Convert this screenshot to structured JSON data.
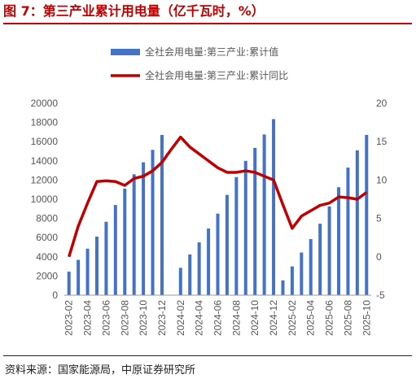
{
  "figure_title": "图 7：第三产业累计用电量（亿千瓦时，%）",
  "source_text": "资料来源：国家能源局，中原证券研究所",
  "colors": {
    "bar": "#4472c4",
    "line": "#c00000",
    "title": "#c00000"
  },
  "chart_data": {
    "type": "bar",
    "categories": [
      "2023-02",
      "2023-03",
      "2023-04",
      "2023-05",
      "2023-06",
      "2023-07",
      "2023-08",
      "2023-09",
      "2023-10",
      "2023-11",
      "2023-12",
      "2024-01",
      "2024-02",
      "2024-03",
      "2024-04",
      "2024-05",
      "2024-06",
      "2024-07",
      "2024-08",
      "2024-09",
      "2024-10",
      "2024-11",
      "2024-12",
      "2025-01",
      "2025-02",
      "2025-03",
      "2025-04",
      "2025-05",
      "2025-06",
      "2025-07",
      "2025-08",
      "2025-09",
      "2025-10"
    ],
    "x_tick_labels": [
      "2023-02",
      "2023-04",
      "2023-06",
      "2023-08",
      "2023-10",
      "2023-12",
      "2024-02",
      "2024-04",
      "2024-06",
      "2024-08",
      "2024-10",
      "2024-12",
      "2025-02",
      "2025-04",
      "2025-06",
      "2025-08",
      "2025-10"
    ],
    "series": [
      {
        "name": "全社会用电量:第三产业:累计值",
        "type": "bar",
        "axis": "left",
        "values": [
          2450,
          3680,
          4850,
          6100,
          7650,
          9400,
          11100,
          12600,
          13850,
          15150,
          16700,
          null,
          2850,
          4250,
          5500,
          6950,
          8500,
          10450,
          12300,
          14000,
          15350,
          16750,
          18350,
          1550,
          3000,
          4450,
          5850,
          7450,
          9250,
          11250,
          13300,
          15100,
          16700
        ]
      },
      {
        "name": "全社会用电量:第三产业:累计同比",
        "type": "line",
        "axis": "right",
        "values": [
          0,
          4,
          7,
          9.8,
          9.9,
          9.8,
          9.3,
          10.2,
          10.5,
          11.2,
          12.3,
          14,
          15.6,
          14.3,
          13.4,
          12.5,
          11.6,
          11,
          11,
          11.2,
          11,
          10.5,
          10,
          6.8,
          3.7,
          5.3,
          6,
          6.7,
          7,
          7.8,
          7.7,
          7.5,
          8.4
        ]
      }
    ],
    "y_left": {
      "min": 0,
      "max": 20000,
      "ticks": [
        0,
        2000,
        4000,
        6000,
        8000,
        10000,
        12000,
        14000,
        16000,
        18000,
        20000
      ]
    },
    "y_right": {
      "min": -5,
      "max": 20,
      "ticks": [
        -5,
        0,
        5,
        10,
        15,
        20
      ]
    },
    "legend_position": "top",
    "grid": false
  }
}
